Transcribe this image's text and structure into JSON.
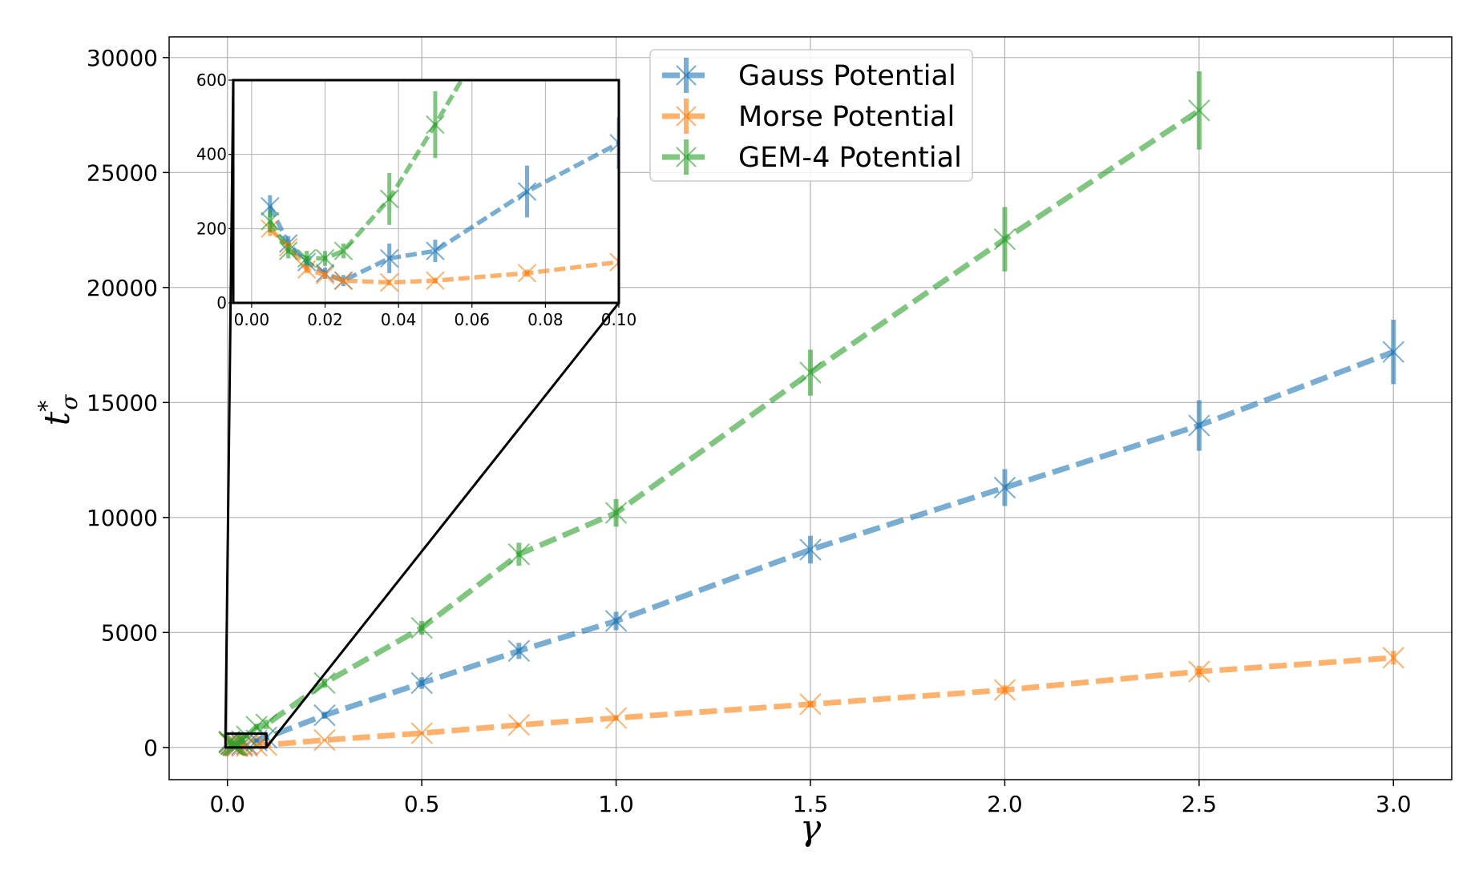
{
  "chart_data": {
    "type": "line",
    "xlabel": "γ",
    "ylabel_main": "t",
    "ylabel_sup": "*",
    "ylabel_sub": "σ",
    "xlim": [
      -0.15,
      3.15
    ],
    "ylim": [
      -1400,
      30900
    ],
    "xticks": [
      0.0,
      0.5,
      1.0,
      1.5,
      2.0,
      2.5,
      3.0
    ],
    "xtick_labels": [
      "0.0",
      "0.5",
      "1.0",
      "1.5",
      "2.0",
      "2.5",
      "3.0"
    ],
    "yticks": [
      0,
      5000,
      10000,
      15000,
      20000,
      25000,
      30000
    ],
    "ytick_labels": [
      "0",
      "5000",
      "10000",
      "15000",
      "20000",
      "25000",
      "30000"
    ],
    "grid": true,
    "legend_position": "top-center",
    "series": [
      {
        "name": "Gauss Potential",
        "color": "#1f77b4",
        "x": [
          0.005,
          0.01,
          0.015,
          0.02,
          0.025,
          0.0375,
          0.05,
          0.075,
          0.1,
          0.25,
          0.5,
          0.75,
          1.0,
          1.5,
          2.0,
          2.5,
          3.0
        ],
        "y": [
          260,
          160,
          110,
          80,
          60,
          120,
          140,
          300,
          430,
          1400,
          2800,
          4200,
          5500,
          8600,
          11300,
          14000,
          17200
        ],
        "err": [
          30,
          20,
          15,
          15,
          15,
          40,
          30,
          70,
          70,
          150,
          250,
          350,
          400,
          600,
          800,
          1100,
          1400
        ]
      },
      {
        "name": "Morse Potential",
        "color": "#ff7f0e",
        "x": [
          0.005,
          0.01,
          0.015,
          0.02,
          0.025,
          0.0375,
          0.05,
          0.075,
          0.1,
          0.25,
          0.5,
          0.75,
          1.0,
          1.5,
          2.0,
          2.5,
          3.0
        ],
        "y": [
          200,
          150,
          90,
          75,
          60,
          55,
          60,
          80,
          110,
          320,
          620,
          980,
          1280,
          1880,
          2500,
          3300,
          3900
        ],
        "err": [
          20,
          15,
          10,
          10,
          8,
          8,
          8,
          10,
          12,
          30,
          60,
          80,
          100,
          150,
          200,
          250,
          300
        ]
      },
      {
        "name": "GEM-4 Potential",
        "color": "#2ca02c",
        "x": [
          0.005,
          0.01,
          0.015,
          0.02,
          0.025,
          0.0375,
          0.05,
          0.075,
          0.1,
          0.25,
          0.5,
          0.75,
          1.0,
          1.5,
          2.0,
          2.5,
          3.0
        ],
        "y": [
          220,
          140,
          120,
          120,
          140,
          280,
          480,
          900,
          1000,
          2800,
          5200,
          8400,
          10200,
          16300,
          22100,
          27700,
          null
        ],
        "err": [
          30,
          20,
          20,
          20,
          20,
          70,
          90,
          120,
          200,
          200,
          300,
          500,
          600,
          1000,
          1400,
          1700,
          null
        ]
      }
    ],
    "inset": {
      "xlim": [
        -0.005,
        0.1
      ],
      "ylim": [
        0,
        600
      ],
      "xticks": [
        0.0,
        0.02,
        0.04,
        0.06,
        0.08,
        0.1
      ],
      "xtick_labels": [
        "0.00",
        "0.02",
        "0.04",
        "0.06",
        "0.08",
        "0.10"
      ],
      "yticks": [
        0,
        200,
        400,
        600
      ],
      "ytick_labels": [
        "0",
        "200",
        "400",
        "600"
      ],
      "grid": true,
      "zoom_region": {
        "x": [
          -0.005,
          0.1
        ],
        "y": [
          0,
          600
        ]
      }
    }
  }
}
